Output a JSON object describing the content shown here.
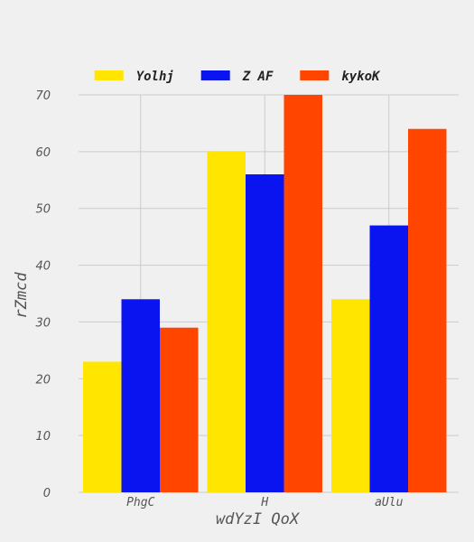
{
  "chart_data": {
    "type": "bar",
    "title": "",
    "xlabel": "wdYzI QoX",
    "ylabel": "rZmcd",
    "categories": [
      "PhgC",
      "H",
      "aUlu"
    ],
    "series": [
      {
        "name": "Yolhj",
        "color": "#ffe500",
        "values": [
          23,
          60,
          34
        ]
      },
      {
        "name": "Z AF",
        "color": "#0a14f0",
        "values": [
          34,
          56,
          47
        ]
      },
      {
        "name": "kykoK",
        "color": "#ff4500",
        "values": [
          29,
          70,
          64
        ]
      }
    ],
    "ylim": [
      0,
      70
    ],
    "yticks": [
      0,
      10,
      20,
      30,
      40,
      50,
      60,
      70
    ],
    "grid": true,
    "legend_position": "top-center"
  }
}
